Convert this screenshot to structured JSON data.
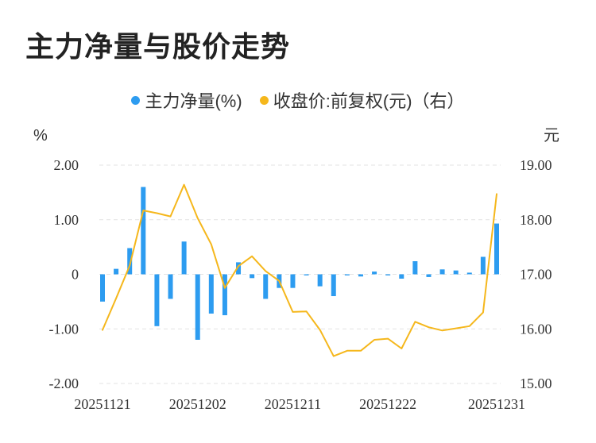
{
  "chart_data": {
    "type": "bar",
    "title": "主力净量与股价走势",
    "legend": {
      "placement": "top-center",
      "items": [
        {
          "label": "主力净量(%)",
          "color": "#2d9cf0",
          "shape": "dot"
        },
        {
          "label": "收盘价:前复权(元)（右）",
          "color": "#f5b71c",
          "shape": "dot"
        }
      ]
    },
    "left_axis": {
      "unit": "%",
      "ticks": [
        "2.00",
        "1.00",
        "0",
        "-1.00",
        "-2.00"
      ],
      "range": [
        -2,
        2
      ]
    },
    "right_axis": {
      "unit": "元",
      "ticks": [
        "19.00",
        "18.00",
        "17.00",
        "16.00",
        "15.00"
      ],
      "range": [
        15,
        19
      ]
    },
    "x_tick_labels": [
      "20251121",
      "20251202",
      "20251211",
      "20251222",
      "20251231"
    ],
    "x_tick_index": [
      0,
      7,
      14,
      21,
      29
    ],
    "grid": "horizontal dashed",
    "series": [
      {
        "name": "主力净量(%)",
        "type": "bar",
        "color": "#2d9cf0",
        "values": [
          -0.5,
          0.1,
          0.48,
          1.6,
          -0.95,
          -0.45,
          0.6,
          -1.2,
          -0.72,
          -0.75,
          0.22,
          -0.07,
          -0.45,
          -0.25,
          -0.25,
          -0.02,
          -0.22,
          -0.4,
          -0.02,
          -0.04,
          0.05,
          -0.02,
          -0.08,
          0.24,
          -0.05,
          0.09,
          0.07,
          0.03,
          0.32,
          0.93
        ]
      },
      {
        "name": "收盘价:前复权(元)（右）",
        "type": "line",
        "color": "#f5b71c",
        "values": [
          15.98,
          16.56,
          17.16,
          18.17,
          18.12,
          18.06,
          18.64,
          18.03,
          17.55,
          16.75,
          17.15,
          17.33,
          17.06,
          16.88,
          16.31,
          16.32,
          15.98,
          15.5,
          15.6,
          15.6,
          15.8,
          15.82,
          15.64,
          16.13,
          16.03,
          15.97,
          16.01,
          16.05,
          16.3,
          18.47
        ]
      }
    ]
  }
}
